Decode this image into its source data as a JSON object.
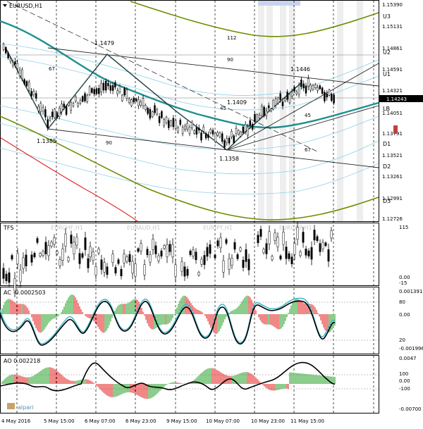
{
  "panels": {
    "main": {
      "title": "EURUSD,H1"
    },
    "tfs": {
      "title": "TFS",
      "watermarks": [
        "EURCHF,H1",
        "EURAUD,H1",
        "EURJPY,H1",
        "EURGBP,H1"
      ]
    },
    "ac": {
      "title": "AC -0.0002503"
    },
    "ao": {
      "title": "AO 0.002218"
    }
  },
  "brand": "alpari",
  "price_axis": [
    "1.15390",
    "1.15131",
    "1.14861",
    "1.14591",
    "1.14321",
    "1.14051",
    "1.13791",
    "1.13521",
    "1.13261",
    "1.12991",
    "1.12726"
  ],
  "current_price": "1.14243",
  "level_labels": [
    "U3",
    "U2",
    "U1",
    "LB",
    "D1",
    "D2",
    "D3"
  ],
  "price_annotations": [
    "1.1479",
    "1.1446",
    "1.1409",
    "1.1385",
    "1.1358"
  ],
  "fib_labels": [
    "112",
    "90",
    "67",
    "45",
    "90",
    "45",
    "67"
  ],
  "tfs_axis": [
    "115",
    "0.00",
    "-15"
  ],
  "ac_axis": [
    "0.001391",
    "80",
    "0.00",
    "20",
    "-0.001996"
  ],
  "ao_axis": [
    "0.0047",
    "100",
    "0.00",
    "-100",
    "-0.00700"
  ],
  "time_labels": [
    "4 May 2016",
    "5 May 15:00",
    "6 May 07:00",
    "6 May 23:00",
    "9 May 15:00",
    "10 May 07:00",
    "10 May 23:00",
    "11 May 15:00"
  ],
  "colors": {
    "teal": "#1e8f8f",
    "olive": "#6b8e00",
    "red": "#e00000",
    "light_blue": "#8fd0e8",
    "bull": "#1a9a1a",
    "bear": "#e01010"
  }
}
